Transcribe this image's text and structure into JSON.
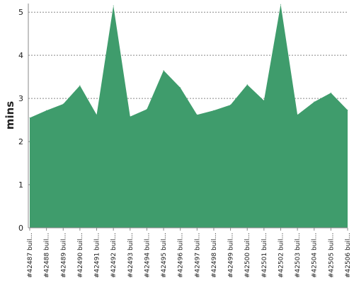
{
  "chart_data": {
    "type": "area",
    "title": "",
    "xlabel": "",
    "ylabel": "mins",
    "ylim": [
      0,
      5.2
    ],
    "y_ticks": [
      0,
      1,
      2,
      3,
      4,
      5
    ],
    "grid": true,
    "series_color": "#3f9c6c",
    "categories": [
      "#42487 buil...",
      "#42488 buil...",
      "#42489 buil...",
      "#42490 buil...",
      "#42491 buil...",
      "#42492 buil...",
      "#42493 buil...",
      "#42494 buil...",
      "#42495 buil...",
      "#42496 buil...",
      "#42497 buil...",
      "#42498 buil...",
      "#42499 buil...",
      "#42500 buil...",
      "#42501 buil...",
      "#42502 buil...",
      "#42503 buil...",
      "#42504 buil...",
      "#42505 buil...",
      "#42506 buil..."
    ],
    "series": [
      {
        "values": [
          2.55,
          2.72,
          2.87,
          3.3,
          2.62,
          5.15,
          2.58,
          2.75,
          3.65,
          3.25,
          2.62,
          2.72,
          2.85,
          3.32,
          2.95,
          5.18,
          2.62,
          2.92,
          3.13,
          2.73
        ]
      }
    ]
  }
}
